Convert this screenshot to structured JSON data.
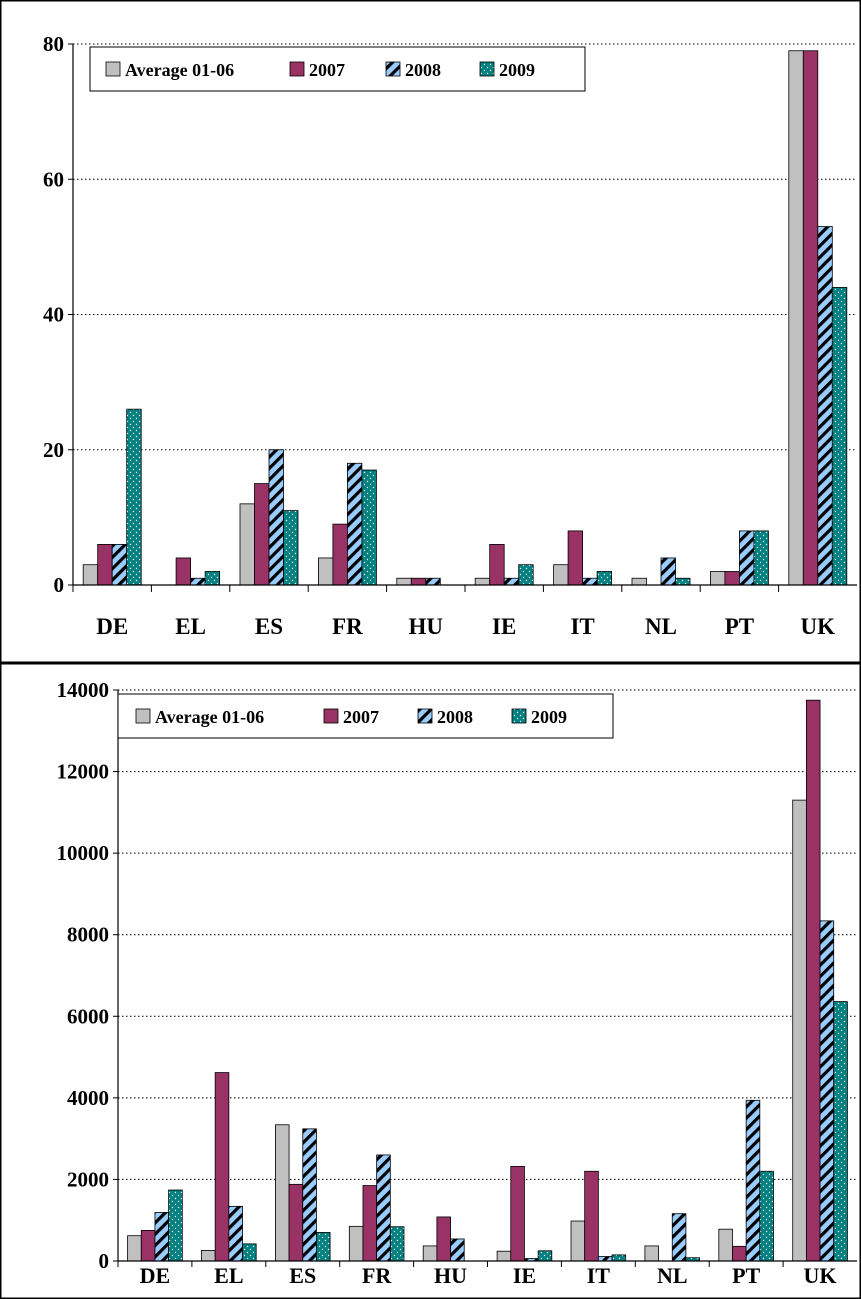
{
  "colors": {
    "avg": "#c0c0c0",
    "y2007": "#993366",
    "y2008": "#99ccff",
    "y2009": "#008080",
    "grid": "#000000"
  },
  "chart_data": [
    {
      "type": "bar",
      "categories": [
        "DE",
        "EL",
        "ES",
        "FR",
        "HU",
        "IE",
        "IT",
        "NL",
        "PT",
        "UK"
      ],
      "series": [
        {
          "name": "Average 01-06",
          "values": [
            3,
            0,
            12,
            4,
            1,
            1,
            3,
            1,
            2,
            79
          ]
        },
        {
          "name": "2007",
          "values": [
            6,
            4,
            15,
            9,
            1,
            6,
            8,
            0,
            2,
            79
          ]
        },
        {
          "name": "2008",
          "values": [
            6,
            1,
            20,
            18,
            1,
            1,
            1,
            4,
            8,
            53
          ]
        },
        {
          "name": "2009",
          "values": [
            26,
            2,
            11,
            17,
            0,
            3,
            2,
            1,
            8,
            44
          ]
        }
      ],
      "yticks": [
        "0",
        "20",
        "40",
        "60",
        "80"
      ],
      "ylim": [
        0,
        80
      ],
      "grid": true,
      "legend": "top-left"
    },
    {
      "type": "bar",
      "categories": [
        "DE",
        "EL",
        "ES",
        "FR",
        "HU",
        "IE",
        "IT",
        "NL",
        "PT",
        "UK"
      ],
      "series": [
        {
          "name": "Average 01-06",
          "values": [
            620,
            260,
            3340,
            850,
            370,
            240,
            980,
            370,
            780,
            11300
          ]
        },
        {
          "name": "2007",
          "values": [
            750,
            4620,
            1880,
            1850,
            1080,
            2320,
            2200,
            0,
            360,
            13750
          ]
        },
        {
          "name": "2008",
          "values": [
            1190,
            1340,
            3240,
            2600,
            540,
            60,
            110,
            1160,
            3940,
            8340
          ]
        },
        {
          "name": "2009",
          "values": [
            1740,
            420,
            700,
            840,
            0,
            250,
            150,
            80,
            2200,
            6360
          ]
        }
      ],
      "yticks": [
        "0",
        "2000",
        "4000",
        "6000",
        "8000",
        "10000",
        "12000",
        "14000"
      ],
      "ylim": [
        0,
        14000
      ],
      "grid": true,
      "legend": "top-left"
    }
  ]
}
